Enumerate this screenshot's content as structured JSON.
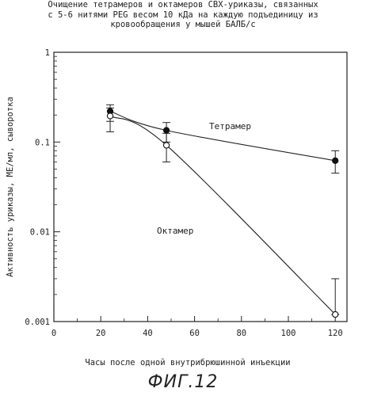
{
  "title_lines": [
    "Очищение тетрамеров и октамеров CBX-уриказы, связанных",
    "с 5-6 нитями PEG весом 10 кДа на каждую подъединицу из",
    "кровообращения у мышей БАЛБ/с"
  ],
  "figure_label": "ФИГ.12",
  "chart_data": {
    "type": "line",
    "xlabel": "Часы после одной внутрибрюшинной инъекции",
    "ylabel": "Активность уриказы, МЕ/мл, сыворотка",
    "xlim": [
      0,
      125
    ],
    "ylim": [
      0.001,
      1
    ],
    "yscale": "log",
    "x_ticks": [
      "0",
      "20",
      "40",
      "60",
      "80",
      "100",
      "120"
    ],
    "y_ticks": [
      "0.001",
      "0.01",
      "0.1",
      "1"
    ],
    "grid": false,
    "series": [
      {
        "name": "Тетрамер",
        "marker": "filled-circle",
        "x": [
          24,
          48,
          120
        ],
        "y": [
          0.22,
          0.135,
          0.062
        ],
        "err_low": [
          0.17,
          0.1,
          0.045
        ],
        "err_high": [
          0.26,
          0.165,
          0.08
        ]
      },
      {
        "name": "Октамер",
        "marker": "open-circle",
        "x": [
          24,
          48,
          120
        ],
        "y": [
          0.195,
          0.092,
          0.0012
        ],
        "err_low": [
          0.13,
          0.06,
          0.0012
        ],
        "err_high": [
          0.24,
          0.125,
          0.003
        ]
      }
    ]
  }
}
